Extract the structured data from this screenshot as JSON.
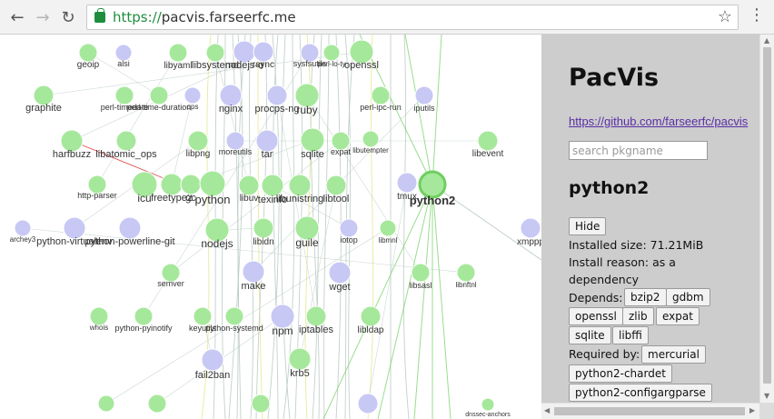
{
  "browser": {
    "url_scheme": "https://",
    "url_host": "pacvis.farseerfc.me",
    "back_icon": "arrow-left-icon",
    "forward_icon": "arrow-right-icon",
    "reload_icon": "reload-icon",
    "star_icon": "star-icon",
    "menu_icon": "kebab-menu-icon"
  },
  "graph": {
    "colors": {
      "green": "#a6e89b",
      "purple": "#c8c8f5",
      "highlight_ring": "#6fcf5e",
      "edge": "#b7c9c1",
      "edge_yellow": "#e4e68a",
      "edge_red": "#e05050"
    },
    "nodes": [
      {
        "label": "geoip",
        "color": "green"
      },
      {
        "label": "alsi",
        "color": "purple"
      },
      {
        "label": "libyaml",
        "color": "green"
      },
      {
        "label": "libsystemd",
        "color": "green"
      },
      {
        "label": "nodejs-d",
        "color": "purple"
      },
      {
        "label": "rsync",
        "color": "purple"
      },
      {
        "label": "sysfsutils",
        "color": "purple"
      },
      {
        "label": "perl-lo-ty",
        "color": "green"
      },
      {
        "label": "openssl",
        "color": "green"
      },
      {
        "label": "graphite",
        "color": "green"
      },
      {
        "label": "perl-timedate",
        "color": "green"
      },
      {
        "label": "perl-time-duration",
        "color": "green"
      },
      {
        "label": "ops",
        "color": "purple"
      },
      {
        "label": "nginx",
        "color": "purple"
      },
      {
        "label": "procps-ng",
        "color": "purple"
      },
      {
        "label": "ruby",
        "color": "green"
      },
      {
        "label": "perl-ipc-run",
        "color": "green"
      },
      {
        "label": "iputils",
        "color": "purple"
      },
      {
        "label": "harfbuzz",
        "color": "green"
      },
      {
        "label": "libatomic_ops",
        "color": "green"
      },
      {
        "label": "libpng",
        "color": "green"
      },
      {
        "label": "moreutils",
        "color": "purple"
      },
      {
        "label": "tar",
        "color": "purple"
      },
      {
        "label": "sqlite",
        "color": "green"
      },
      {
        "label": "expat",
        "color": "green"
      },
      {
        "label": "libutempter",
        "color": "green"
      },
      {
        "label": "libevent",
        "color": "green"
      },
      {
        "label": "http-parser",
        "color": "green"
      },
      {
        "label": "icu",
        "color": "green"
      },
      {
        "label": "freetype2",
        "color": "green"
      },
      {
        "label": "gc",
        "color": "green"
      },
      {
        "label": "python",
        "color": "green"
      },
      {
        "label": "libuv",
        "color": "green"
      },
      {
        "label": "texinfo",
        "color": "green"
      },
      {
        "label": "libunistring",
        "color": "green"
      },
      {
        "label": "libtool",
        "color": "green"
      },
      {
        "label": "tmux",
        "color": "purple"
      },
      {
        "label": "python2",
        "color": "green"
      },
      {
        "label": "archey3",
        "color": "purple"
      },
      {
        "label": "python-virtualenv",
        "color": "purple"
      },
      {
        "label": "python-powerline-git",
        "color": "purple"
      },
      {
        "label": "nodejs",
        "color": "green"
      },
      {
        "label": "libidn",
        "color": "green"
      },
      {
        "label": "guile",
        "color": "green"
      },
      {
        "label": "iotop",
        "color": "purple"
      },
      {
        "label": "libmnl",
        "color": "green"
      },
      {
        "label": "xmppp",
        "color": "purple"
      },
      {
        "label": "semver",
        "color": "green"
      },
      {
        "label": "make",
        "color": "purple"
      },
      {
        "label": "wget",
        "color": "purple"
      },
      {
        "label": "libsasl",
        "color": "green"
      },
      {
        "label": "libnftnl",
        "color": "green"
      },
      {
        "label": "whois",
        "color": "green"
      },
      {
        "label": "python-pyinotify",
        "color": "green"
      },
      {
        "label": "keyutils",
        "color": "green"
      },
      {
        "label": "python-systemd",
        "color": "green"
      },
      {
        "label": "npm",
        "color": "purple"
      },
      {
        "label": "iptables",
        "color": "green"
      },
      {
        "label": "libldap",
        "color": "green"
      },
      {
        "label": "fail2ban",
        "color": "purple"
      },
      {
        "label": "krb5",
        "color": "green"
      },
      {
        "label": "dnssec-anchors",
        "color": "green"
      },
      {
        "label": "",
        "color": "green"
      },
      {
        "label": "",
        "color": "green"
      },
      {
        "label": "",
        "color": "green"
      },
      {
        "label": "",
        "color": "purple"
      }
    ]
  },
  "sidebar": {
    "title": "PacVis",
    "repo_link": "https://github.com/farseerfc/pacvis",
    "search_placeholder": "search pkgname",
    "package_name": "python2",
    "hide_label": "Hide",
    "installed_size": "Installed size: 71.21MiB",
    "install_reason_1": "Install reason: as a",
    "install_reason_2": "dependency",
    "depends_label": "Depends:",
    "depends": [
      "bzip2",
      "gdbm",
      "openssl",
      "zlib",
      "expat",
      "sqlite",
      "libffi"
    ],
    "required_by_label": "Required by:",
    "required_by": [
      "mercurial",
      "python2-chardet",
      "python2-configargparse"
    ]
  }
}
